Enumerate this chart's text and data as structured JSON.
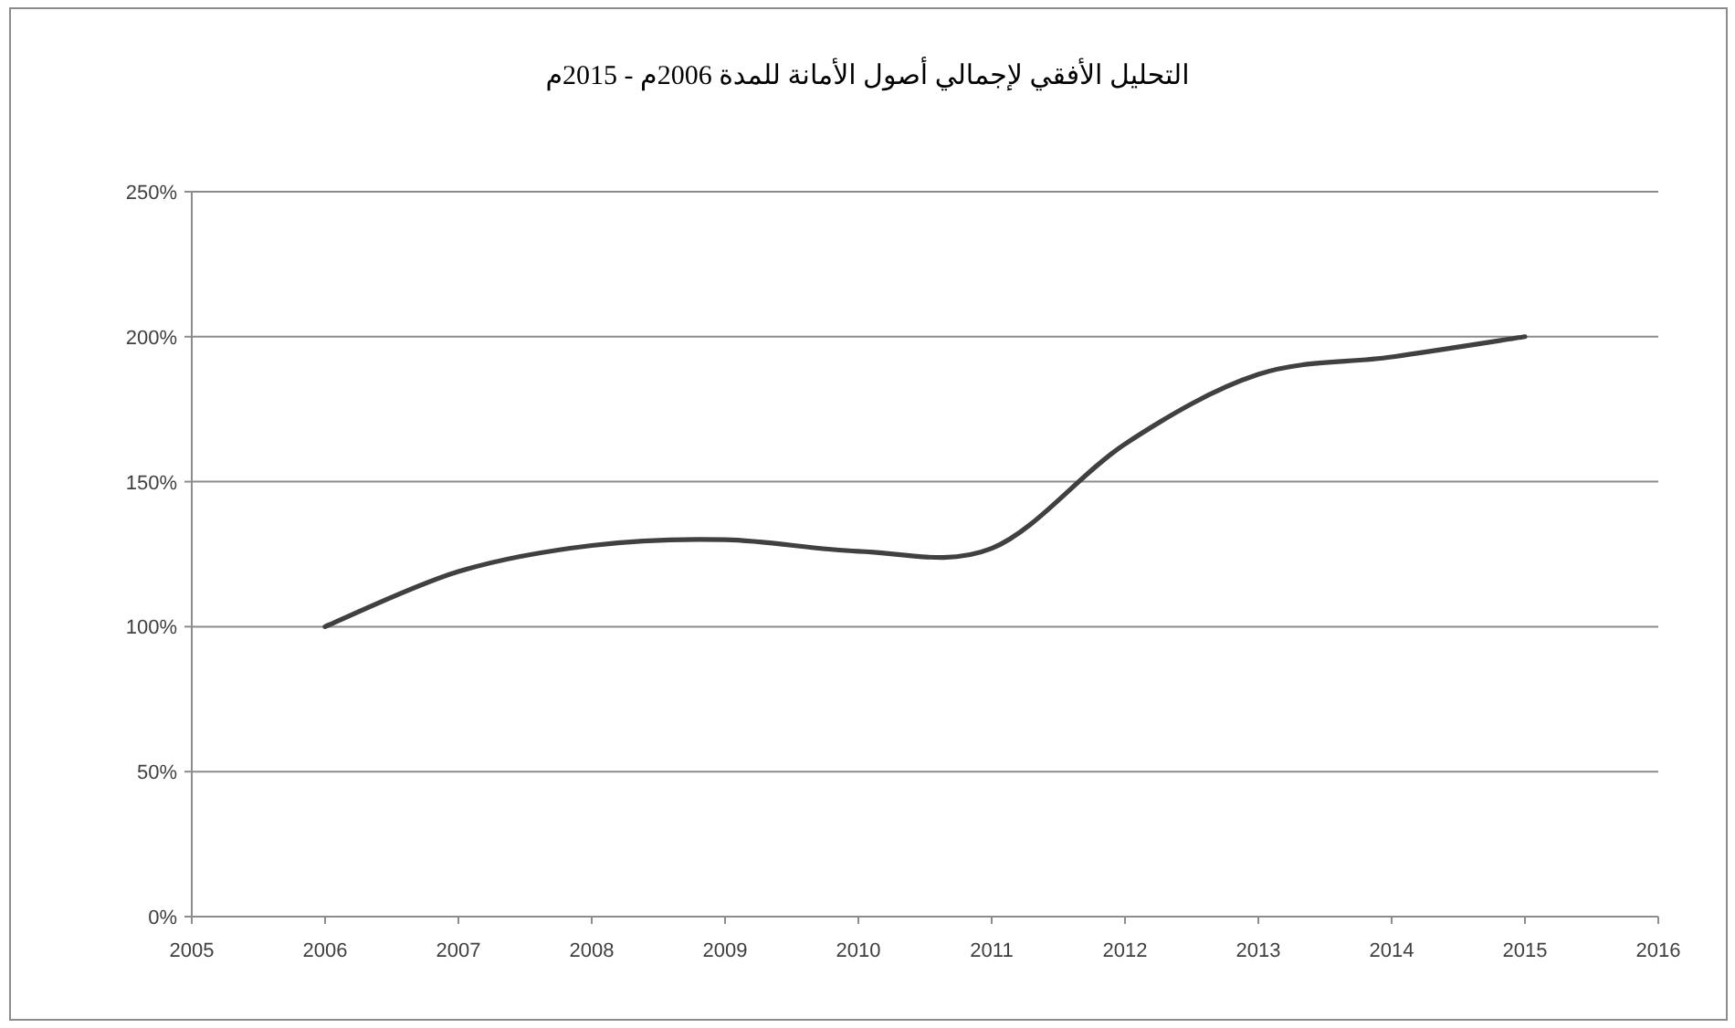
{
  "chart_data": {
    "type": "line",
    "title": "التحليل الأفقي لإجمالي أصول الأمانة للمدة 2006م - 2015م",
    "x": [
      2006,
      2007,
      2008,
      2009,
      2010,
      2011,
      2012,
      2013,
      2014,
      2015
    ],
    "series": [
      {
        "color": "#404040",
        "values": [
          100,
          119,
          128,
          130,
          126,
          127,
          163,
          187,
          193,
          200
        ]
      }
    ],
    "xlim": [
      2005,
      2016
    ],
    "xticks": [
      2005,
      2006,
      2007,
      2008,
      2009,
      2010,
      2011,
      2012,
      2013,
      2014,
      2015,
      2016
    ],
    "ylim": [
      0,
      250
    ],
    "yticks": [
      {
        "value": 0,
        "label": "0%"
      },
      {
        "value": 50,
        "label": "50%"
      },
      {
        "value": 100,
        "label": "100%"
      },
      {
        "value": 150,
        "label": "150%"
      },
      {
        "value": 200,
        "label": "200%"
      },
      {
        "value": 250,
        "label": "250%"
      }
    ],
    "grid": "y",
    "line_style": "solid"
  }
}
